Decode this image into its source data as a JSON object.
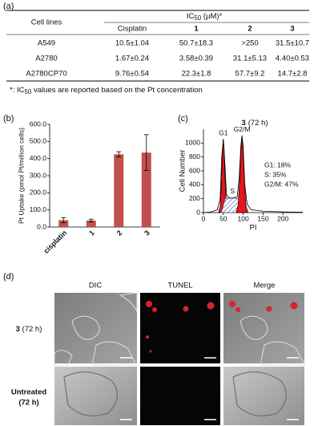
{
  "panel_labels": [
    "(a)",
    "(b)",
    "(c)",
    "(d)"
  ],
  "table": {
    "ic50_header": [
      "IC",
      "50",
      " (μM)*"
    ],
    "columns": [
      "Cell lines",
      "Cisplatin",
      "1",
      "2",
      "3"
    ],
    "rows": [
      [
        "A549",
        "10.5±1.04",
        "50.7±18.3",
        ">250",
        "31.5±10.7"
      ],
      [
        "A2780",
        "1.67±0.24",
        "3.58±0.39",
        "31.1±5.13",
        "4.40±0.53"
      ],
      [
        "A2780CP70",
        "9.76±0.54",
        "22.3±1.8",
        "57.7±9.2",
        "14.7±2.8"
      ]
    ],
    "footnote": [
      "*: IC",
      "50",
      " values are reported based on the Pt concentration"
    ]
  },
  "chart_data": [
    {
      "type": "bar",
      "y_label": "Pt Uptake (pmol Pt/million cells)",
      "categories": [
        "cisplatin",
        "1",
        "2",
        "3"
      ],
      "values": [
        40,
        38,
        425,
        435
      ],
      "errors": [
        15,
        8,
        15,
        105
      ],
      "color": "#c0504d",
      "ylim": [
        0,
        600
      ],
      "yticks": [
        {
          "value": 0,
          "label": "0.0"
        },
        {
          "value": 100,
          "label": "100.0"
        },
        {
          "value": 200,
          "label": "200.0"
        },
        {
          "value": 300,
          "label": "300.0"
        },
        {
          "value": 400,
          "label": "400.0"
        },
        {
          "value": 500,
          "label": "500.0"
        },
        {
          "value": 600,
          "label": "600.0"
        }
      ]
    },
    {
      "type": "line",
      "title_compound": "3",
      "title": "(72 h)",
      "x_label": "PI",
      "y_label": "Cell Number",
      "xlim": [
        0,
        250
      ],
      "ylim": [
        0,
        1200
      ],
      "xticks": [
        0,
        50,
        100,
        150,
        200
      ],
      "yticks": [
        0,
        200,
        400,
        600,
        800,
        1000
      ],
      "annotations": [
        "G1: 18%",
        "S: 35%",
        "G2/M: 47%"
      ],
      "series": [
        {
          "name": "G1",
          "color": "#e8141c",
          "x": [
            38,
            42,
            45,
            48,
            50,
            52,
            55,
            58,
            62
          ],
          "values": [
            0,
            80,
            400,
            900,
            1050,
            900,
            400,
            80,
            0
          ]
        },
        {
          "name": "S",
          "color": "#3b4f9a",
          "x": [
            45,
            55,
            65,
            75,
            85,
            95,
            105
          ],
          "values": [
            0,
            200,
            210,
            210,
            205,
            200,
            0
          ]
        },
        {
          "name": "G2/M",
          "color": "#e8141c",
          "x": [
            82,
            87,
            91,
            94,
            97,
            100,
            103,
            107,
            112
          ],
          "values": [
            0,
            100,
            450,
            900,
            1100,
            900,
            450,
            100,
            0
          ]
        },
        {
          "color": "#000000",
          "x": [
            0,
            20,
            35,
            42,
            46,
            50,
            54,
            58,
            65,
            75,
            85,
            90,
            94,
            97,
            100,
            104,
            110,
            120,
            150,
            200,
            250
          ],
          "values": [
            0,
            10,
            40,
            200,
            800,
            1060,
            700,
            250,
            210,
            210,
            230,
            500,
            950,
            1110,
            950,
            400,
            120,
            40,
            20,
            10,
            5
          ]
        }
      ]
    }
  ],
  "images": {
    "columns": [
      "DIC",
      "TUNEL",
      "Merge"
    ],
    "rows": [
      [
        "3",
        " (72 h)"
      ],
      [
        "Untreated",
        "(72 h)"
      ]
    ]
  }
}
